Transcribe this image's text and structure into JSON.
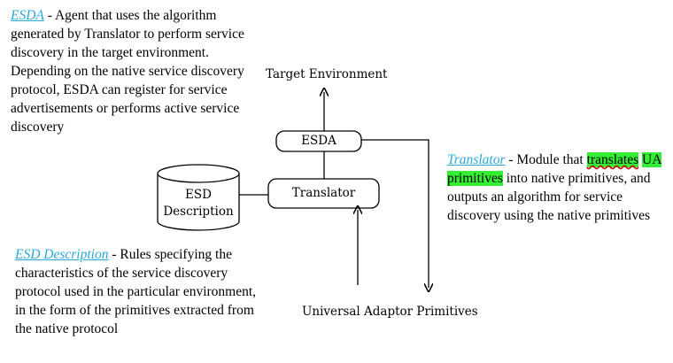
{
  "esda_para": {
    "term": "ESDA",
    "text": " - Agent that uses the algorithm generated by Translator to perform service discovery in the target environment. Depending on the native service discovery protocol, ESDA can register for service advertisements or performs active service discovery"
  },
  "translator_para": {
    "term": "Translator",
    "text_before": " - Module that ",
    "highlight_1": "translates",
    "space": " ",
    "highlight_2": "UA primitives",
    "text_after": " into native primitives, and outputs an algorithm for service discovery using the native primitives"
  },
  "esd_desc_para": {
    "term": "ESD Description",
    "text": " - Rules specifying the characteristics of the service discovery protocol used in the particular environment, in the form of the primitives extracted from the native protocol"
  },
  "diagram": {
    "target_environment": "Target Environment",
    "esda_box": "ESDA",
    "translator_box": "Translator",
    "esd_db_line1": "ESD",
    "esd_db_line2": "Description",
    "uap_label": "Universal Adaptor Primitives"
  },
  "colors": {
    "term": "#2aa8dc",
    "highlight": "#33ee33"
  }
}
